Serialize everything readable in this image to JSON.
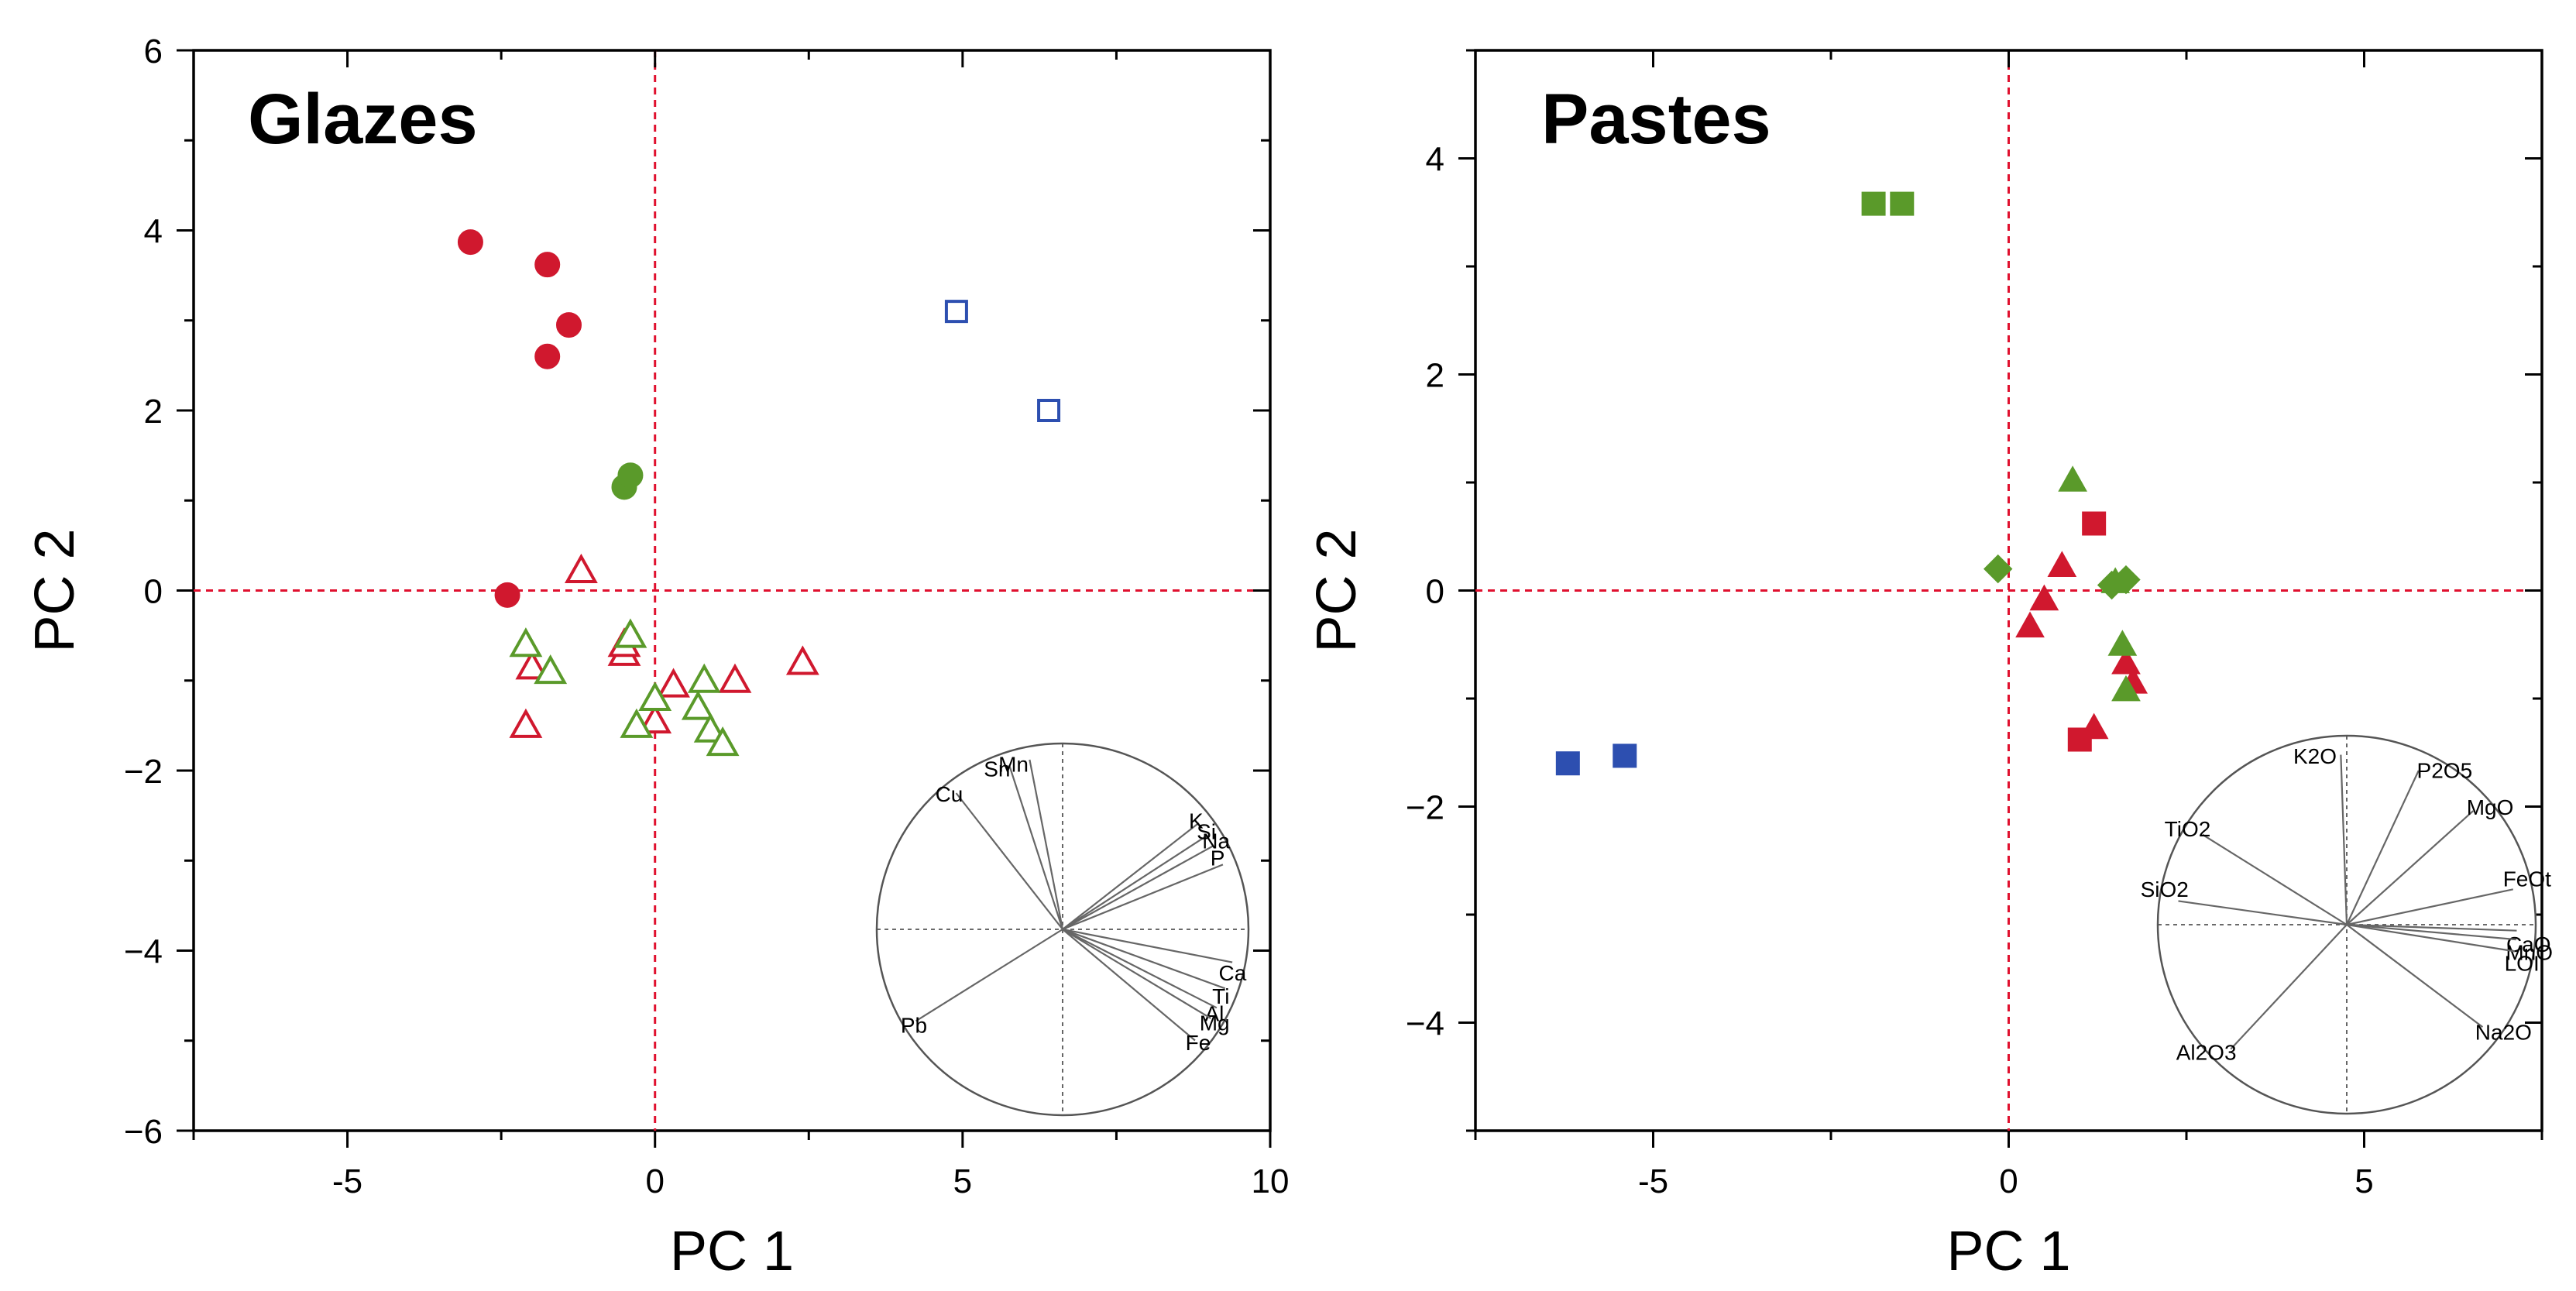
{
  "chart_data": [
    {
      "type": "scatter",
      "title": "Glazes",
      "xlabel": "PC 1",
      "ylabel": "PC 2",
      "xlim": [
        -7.5,
        10
      ],
      "ylim": [
        -6,
        6
      ],
      "xticks": [
        -5,
        0,
        5,
        10
      ],
      "xtick_labels": [
        "-5",
        "0",
        "5",
        "10"
      ],
      "yticks": [
        6,
        4,
        2,
        0,
        -2,
        -4,
        -6
      ],
      "ytick_labels": [
        "6",
        "4",
        "2",
        "0",
        "−2",
        "−4",
        "−6"
      ],
      "reference_lines": {
        "x": 0,
        "y": 0,
        "color": "#e0102e"
      },
      "series": [
        {
          "name": "red-filled-circle",
          "marker": "circle",
          "filled": true,
          "color": "#d0182e",
          "points": [
            [
              -3.0,
              3.87
            ],
            [
              -1.75,
              3.62
            ],
            [
              -1.4,
              2.95
            ],
            [
              -1.75,
              2.6
            ],
            [
              -2.4,
              -0.05
            ]
          ]
        },
        {
          "name": "green-filled-circle",
          "marker": "circle",
          "filled": true,
          "color": "#5a9a2a",
          "points": [
            [
              -0.5,
              1.15
            ],
            [
              -0.4,
              1.28
            ]
          ]
        },
        {
          "name": "blue-open-square",
          "marker": "square",
          "filled": false,
          "color": "#2d4fb0",
          "points": [
            [
              4.9,
              3.1
            ],
            [
              6.4,
              2.0
            ]
          ]
        },
        {
          "name": "red-open-triangle",
          "marker": "triangle",
          "filled": false,
          "color": "#d0182e",
          "points": [
            [
              -1.2,
              0.22
            ],
            [
              -2.0,
              -0.85
            ],
            [
              -2.1,
              -1.5
            ],
            [
              -0.5,
              -0.7
            ],
            [
              -0.5,
              -0.6
            ],
            [
              0.0,
              -1.45
            ],
            [
              0.3,
              -1.05
            ],
            [
              1.3,
              -1.0
            ],
            [
              2.4,
              -0.8
            ]
          ]
        },
        {
          "name": "green-open-triangle",
          "marker": "triangle",
          "filled": false,
          "color": "#5a9a2a",
          "points": [
            [
              -2.1,
              -0.6
            ],
            [
              -1.7,
              -0.9
            ],
            [
              -0.4,
              -0.5
            ],
            [
              -0.3,
              -1.5
            ],
            [
              0.0,
              -1.2
            ],
            [
              0.7,
              -1.3
            ],
            [
              0.8,
              -1.0
            ],
            [
              0.9,
              -1.55
            ],
            [
              1.1,
              -1.7
            ]
          ]
        }
      ],
      "loadings": {
        "title": "loading circle",
        "items": [
          {
            "label": "Sn",
            "angle_deg": 108
          },
          {
            "label": "Mn",
            "angle_deg": 101
          },
          {
            "label": "Cu",
            "angle_deg": 128
          },
          {
            "label": "K",
            "angle_deg": 38
          },
          {
            "label": "Si",
            "angle_deg": 33
          },
          {
            "label": "Na",
            "angle_deg": 29
          },
          {
            "label": "P",
            "angle_deg": 22
          },
          {
            "label": "Ca",
            "angle_deg": -11
          },
          {
            "label": "Ti",
            "angle_deg": -20
          },
          {
            "label": "Al",
            "angle_deg": -27
          },
          {
            "label": "Mg",
            "angle_deg": -31
          },
          {
            "label": "Fe",
            "angle_deg": -40
          },
          {
            "label": "Pb",
            "angle_deg": -148
          }
        ]
      }
    },
    {
      "type": "scatter",
      "title": "Pastes",
      "xlabel": "PC 1",
      "ylabel": "PC 2",
      "xlim": [
        -7.5,
        7.5
      ],
      "ylim": [
        -5,
        5
      ],
      "xticks": [
        -5,
        0,
        5
      ],
      "xtick_labels": [
        "-5",
        "0",
        "5"
      ],
      "yticks": [
        4,
        2,
        0,
        -2,
        -4
      ],
      "ytick_labels": [
        "4",
        "2",
        "0",
        "−2",
        "−4"
      ],
      "reference_lines": {
        "x": 0,
        "y": 0,
        "color": "#e0102e"
      },
      "series": [
        {
          "name": "green-filled-square",
          "marker": "square",
          "filled": true,
          "color": "#5a9a2a",
          "points": [
            [
              -1.9,
              3.58
            ],
            [
              -1.5,
              3.58
            ]
          ]
        },
        {
          "name": "blue-filled-square",
          "marker": "square",
          "filled": true,
          "color": "#2d4fb0",
          "points": [
            [
              -6.2,
              -1.6
            ],
            [
              -5.4,
              -1.53
            ]
          ]
        },
        {
          "name": "red-filled-square",
          "marker": "square",
          "filled": true,
          "color": "#d0182e",
          "points": [
            [
              1.2,
              0.62
            ],
            [
              1.0,
              -1.38
            ]
          ]
        },
        {
          "name": "red-filled-triangle",
          "marker": "triangle",
          "filled": true,
          "color": "#d0182e",
          "points": [
            [
              0.5,
              -0.08
            ],
            [
              0.3,
              -0.33
            ],
            [
              0.75,
              0.23
            ],
            [
              1.65,
              -0.67
            ],
            [
              1.75,
              -0.85
            ],
            [
              1.2,
              -1.27
            ]
          ]
        },
        {
          "name": "green-filled-triangle",
          "marker": "triangle",
          "filled": true,
          "color": "#5a9a2a",
          "points": [
            [
              0.9,
              1.02
            ],
            [
              1.5,
              0.08
            ],
            [
              1.6,
              -0.5
            ],
            [
              1.65,
              -0.92
            ]
          ]
        },
        {
          "name": "green-filled-diamond",
          "marker": "diamond",
          "filled": true,
          "color": "#5a9a2a",
          "points": [
            [
              -0.15,
              0.2
            ],
            [
              1.45,
              0.05
            ],
            [
              1.65,
              0.1
            ]
          ]
        }
      ],
      "loadings": {
        "title": "loading circle",
        "items": [
          {
            "label": "K2O",
            "angle_deg": 92
          },
          {
            "label": "P2O5",
            "angle_deg": 65
          },
          {
            "label": "MgO",
            "angle_deg": 42
          },
          {
            "label": "TiO2",
            "angle_deg": 148
          },
          {
            "label": "SiO2",
            "angle_deg": 172
          },
          {
            "label": "FeOt",
            "angle_deg": 12
          },
          {
            "label": "CaO",
            "angle_deg": -2
          },
          {
            "label": "MnO",
            "angle_deg": -5
          },
          {
            "label": "LOI",
            "angle_deg": -9
          },
          {
            "label": "Na2O",
            "angle_deg": -37
          },
          {
            "label": "Al2O3",
            "angle_deg": -133
          }
        ]
      }
    }
  ]
}
